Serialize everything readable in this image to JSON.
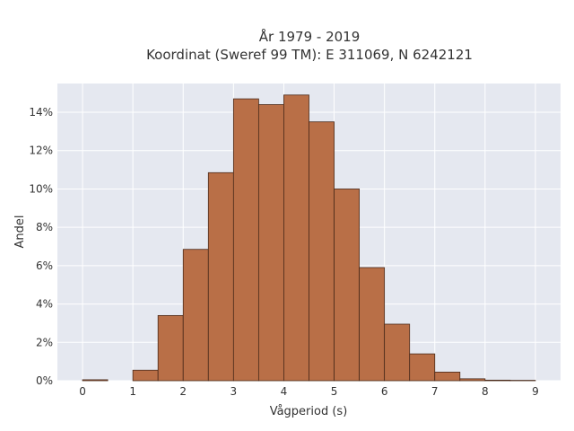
{
  "chart_data": {
    "type": "bar",
    "title": "År 1979 - 2019",
    "subtitle": "Koordinat (Sweref 99 TM): E 311069, N 6242121",
    "xlabel": "Vågperiod (s)",
    "ylabel": "Andel",
    "bin_width": 0.5,
    "bins": [
      {
        "x0": 0.0,
        "value": 0.05
      },
      {
        "x0": 0.5,
        "value": 0.0
      },
      {
        "x0": 1.0,
        "value": 0.55
      },
      {
        "x0": 1.5,
        "value": 3.4
      },
      {
        "x0": 2.0,
        "value": 6.85
      },
      {
        "x0": 2.5,
        "value": 10.85
      },
      {
        "x0": 3.0,
        "value": 14.7
      },
      {
        "x0": 3.5,
        "value": 14.4
      },
      {
        "x0": 4.0,
        "value": 14.9
      },
      {
        "x0": 4.5,
        "value": 13.5
      },
      {
        "x0": 5.0,
        "value": 10.0
      },
      {
        "x0": 5.5,
        "value": 5.9
      },
      {
        "x0": 6.0,
        "value": 2.95
      },
      {
        "x0": 6.5,
        "value": 1.4
      },
      {
        "x0": 7.0,
        "value": 0.45
      },
      {
        "x0": 7.5,
        "value": 0.1
      },
      {
        "x0": 8.0,
        "value": 0.03
      },
      {
        "x0": 8.5,
        "value": 0.02
      }
    ],
    "xticks": [
      0,
      1,
      2,
      3,
      4,
      5,
      6,
      7,
      8,
      9
    ],
    "yticks": [
      0,
      2,
      4,
      6,
      8,
      10,
      12,
      14
    ],
    "ytick_suffix": "%",
    "xlim": [
      -0.5,
      9.5
    ],
    "ylim": [
      0,
      15.5
    ],
    "grid": true,
    "colors": {
      "bar_fill": "#b96f47",
      "bar_stroke": "#4a2a1a",
      "plot_bg": "#e5e8f0",
      "grid": "#ffffff"
    }
  }
}
